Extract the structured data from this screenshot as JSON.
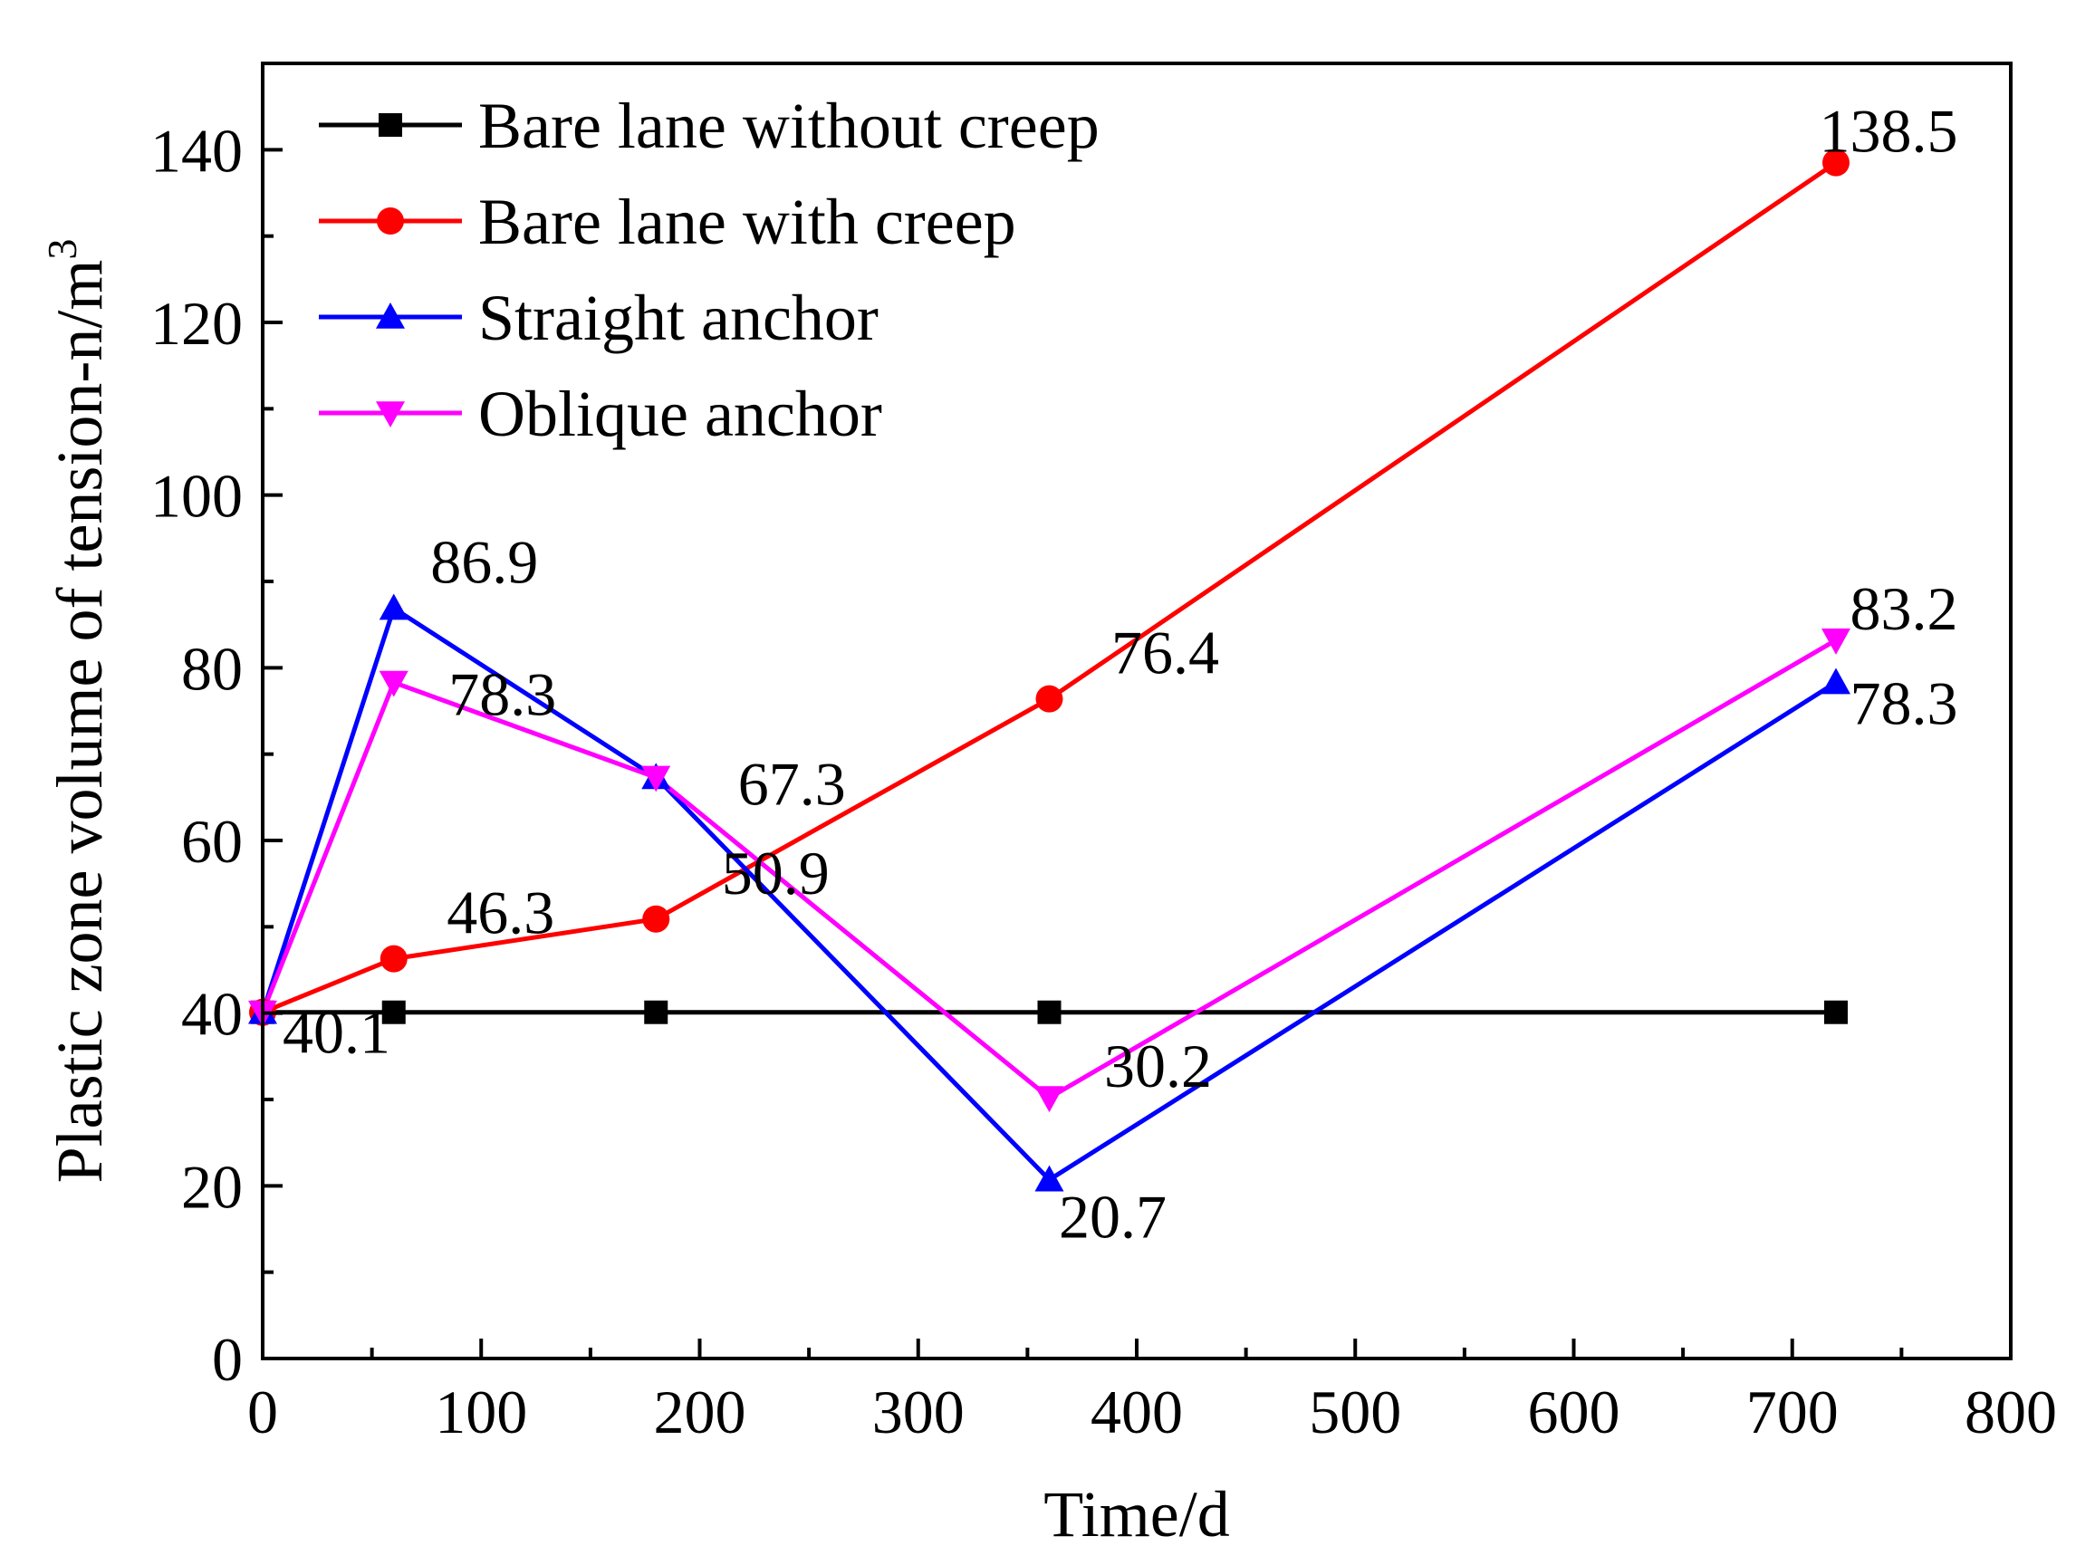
{
  "chart_data": {
    "type": "line",
    "title": "",
    "xlabel": "Time/d",
    "ylabel": "Plastic zone volume of tension-n/m",
    "ylabel_superscript": "3",
    "xlim": [
      0,
      800
    ],
    "ylim": [
      0,
      150
    ],
    "xticks": [
      0,
      100,
      200,
      300,
      400,
      500,
      600,
      700,
      800
    ],
    "yticks": [
      0,
      20,
      40,
      60,
      80,
      100,
      120,
      140
    ],
    "grid": false,
    "legend_position": "top-left",
    "x": [
      0,
      60,
      180,
      360,
      720
    ],
    "series": [
      {
        "name": "Bare lane without creep",
        "color": "#000000",
        "marker": "square",
        "values": [
          40.1,
          40.1,
          40.1,
          40.1,
          40.1
        ]
      },
      {
        "name": "Bare lane with creep",
        "color": "#ff0000",
        "marker": "circle",
        "values": [
          40.1,
          46.3,
          50.9,
          76.4,
          138.5
        ]
      },
      {
        "name": "Straight anchor",
        "color": "#0000ff",
        "marker": "triangle-up",
        "values": [
          40.1,
          86.9,
          67.3,
          20.7,
          78.3
        ]
      },
      {
        "name": "Oblique anchor",
        "color": "#ff00ff",
        "marker": "triangle-down",
        "values": [
          40.1,
          78.3,
          67.3,
          30.2,
          83.2
        ]
      }
    ],
    "annotations": [
      {
        "x": 0,
        "y": 40.1,
        "text": "40.1"
      },
      {
        "x": 60,
        "y": 46.3,
        "text": "46.3"
      },
      {
        "x": 180,
        "y": 50.9,
        "text": "50.9"
      },
      {
        "x": 360,
        "y": 76.4,
        "text": "76.4"
      },
      {
        "x": 720,
        "y": 138.5,
        "text": "138.5"
      },
      {
        "x": 60,
        "y": 86.9,
        "text": "86.9"
      },
      {
        "x": 60,
        "y": 78.3,
        "text": "78.3"
      },
      {
        "x": 180,
        "y": 67.3,
        "text": "67.3"
      },
      {
        "x": 360,
        "y": 30.2,
        "text": "30.2"
      },
      {
        "x": 360,
        "y": 20.7,
        "text": "20.7"
      },
      {
        "x": 720,
        "y": 83.2,
        "text": "83.2"
      },
      {
        "x": 720,
        "y": 78.3,
        "text": "78.3"
      }
    ]
  }
}
